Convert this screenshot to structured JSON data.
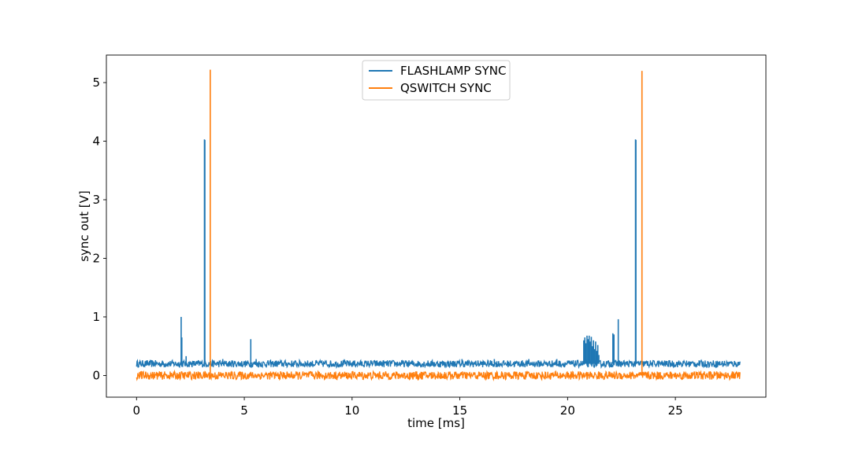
{
  "chart_data": {
    "type": "line",
    "title": "",
    "xlabel": "time [ms]",
    "ylabel": "sync out [V]",
    "xlim": [
      -1.4,
      29.2
    ],
    "ylim": [
      -0.37,
      5.47
    ],
    "xticks": [
      0,
      5,
      10,
      15,
      20,
      25
    ],
    "yticks": [
      0,
      1,
      2,
      3,
      4,
      5
    ],
    "grid": false,
    "legend_position": "top-center",
    "colors": {
      "flashlamp": "#1f77b4",
      "qswitch": "#ff7f0e",
      "axis": "#000000"
    },
    "series": [
      {
        "name": "FLASHLAMP SYNC",
        "color": "#1f77b4",
        "baseline": 0.2,
        "noise_band": [
          0.14,
          0.26
        ],
        "x_range": [
          0,
          28.0
        ],
        "spikes": [
          {
            "x": 2.07,
            "y": 1.0
          },
          {
            "x": 2.1,
            "y": 0.65
          },
          {
            "x": 2.3,
            "y": 0.33
          },
          {
            "x": 3.15,
            "y": 4.03
          },
          {
            "x": 3.17,
            "y": 4.02
          },
          {
            "x": 4.0,
            "y": 0.28
          },
          {
            "x": 5.3,
            "y": 0.62
          },
          {
            "x": 5.55,
            "y": 0.28
          },
          {
            "x": 15.1,
            "y": 0.28
          },
          {
            "x": 16.6,
            "y": 0.28
          },
          {
            "x": 18.2,
            "y": 0.28
          },
          {
            "x": 19.5,
            "y": 0.28
          },
          {
            "x": 20.75,
            "y": 0.6
          },
          {
            "x": 20.8,
            "y": 0.65
          },
          {
            "x": 20.85,
            "y": 0.55
          },
          {
            "x": 20.9,
            "y": 0.68
          },
          {
            "x": 20.95,
            "y": 0.62
          },
          {
            "x": 21.0,
            "y": 0.68
          },
          {
            "x": 21.05,
            "y": 0.58
          },
          {
            "x": 21.1,
            "y": 0.66
          },
          {
            "x": 21.15,
            "y": 0.5
          },
          {
            "x": 21.2,
            "y": 0.6
          },
          {
            "x": 21.25,
            "y": 0.45
          },
          {
            "x": 21.3,
            "y": 0.58
          },
          {
            "x": 21.35,
            "y": 0.42
          },
          {
            "x": 21.4,
            "y": 0.52
          },
          {
            "x": 21.45,
            "y": 0.35
          },
          {
            "x": 22.1,
            "y": 0.72
          },
          {
            "x": 22.15,
            "y": 0.7
          },
          {
            "x": 22.35,
            "y": 0.96
          },
          {
            "x": 23.15,
            "y": 4.03
          },
          {
            "x": 23.17,
            "y": 4.02
          }
        ]
      },
      {
        "name": "QSWITCH SYNC",
        "color": "#ff7f0e",
        "baseline": 0.0,
        "noise_band": [
          -0.07,
          0.07
        ],
        "x_range": [
          0,
          28.0
        ],
        "spikes": [
          {
            "x": 3.42,
            "y": 5.22
          },
          {
            "x": 23.45,
            "y": 5.2
          }
        ]
      }
    ]
  }
}
